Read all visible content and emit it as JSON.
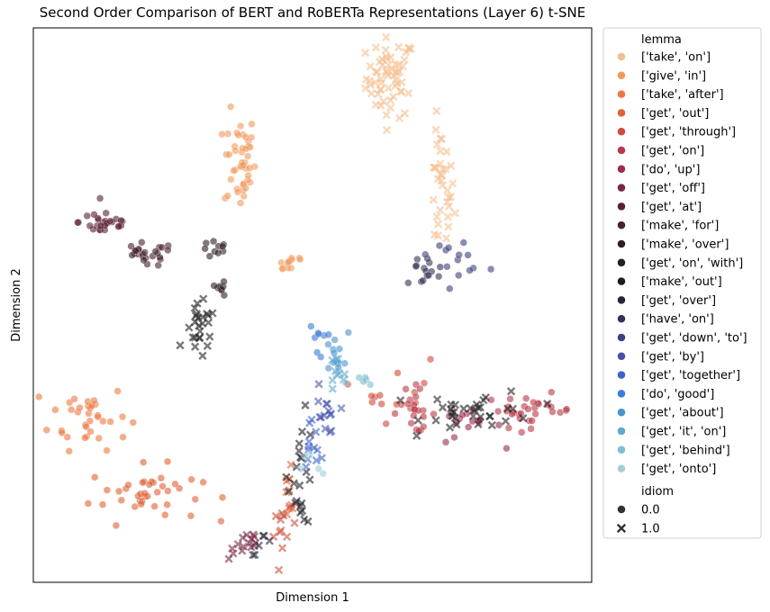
{
  "chart_data": {
    "type": "scatter",
    "title": "Second Order Comparison of BERT and RoBERTa Representations (Layer 6) t-SNE",
    "xlabel": "Dimension 1",
    "ylabel": "Dimension 2",
    "xlim": [
      0,
      100
    ],
    "ylim": [
      0,
      100
    ],
    "x_ticks_visible": false,
    "y_ticks_visible": false,
    "grid": false,
    "legend_placement": "outside-right",
    "hue_legend_title": "lemma",
    "style_legend_title": "idiom",
    "style_legend": [
      {
        "label": "0.0",
        "marker": "circle"
      },
      {
        "label": "1.0",
        "marker": "x"
      }
    ],
    "series": [
      {
        "name": "['take', 'on']",
        "color": "#f5be8e",
        "clusters": [
          {
            "idiom": 1,
            "cx": 64,
            "cy": 91,
            "sx": 2.2,
            "sy": 3.6,
            "n": 60
          },
          {
            "idiom": 1,
            "cx": 73,
            "cy": 70,
            "sx": 1.2,
            "sy": 6,
            "n": 35
          }
        ]
      },
      {
        "name": "['give', 'in']",
        "color": "#f29a5e",
        "clusters": [
          {
            "idiom": 0,
            "cx": 37,
            "cy": 76,
            "sx": 1.4,
            "sy": 4.5,
            "n": 45
          },
          {
            "idiom": 0,
            "cx": 46,
            "cy": 58,
            "sx": 1.5,
            "sy": 1.2,
            "n": 12
          }
        ]
      },
      {
        "name": "['take', 'after']",
        "color": "#ee7a43",
        "clusters": [
          {
            "idiom": 0,
            "cx": 10,
            "cy": 30,
            "sx": 3.5,
            "sy": 3,
            "n": 35
          }
        ]
      },
      {
        "name": "['get', 'out']",
        "color": "#e06236",
        "clusters": [
          {
            "idiom": 0,
            "cx": 20,
            "cy": 16,
            "sx": 5,
            "sy": 2.5,
            "n": 40
          },
          {
            "idiom": 1,
            "cx": 46,
            "cy": 16,
            "sx": 0.8,
            "sy": 3,
            "n": 10
          }
        ]
      },
      {
        "name": "['get', 'through']",
        "color": "#cf4b3a",
        "clusters": [
          {
            "idiom": 0,
            "cx": 65,
            "cy": 35,
            "sx": 3,
            "sy": 3,
            "n": 15
          },
          {
            "idiom": 1,
            "cx": 45,
            "cy": 9,
            "sx": 1,
            "sy": 2,
            "n": 12
          }
        ]
      },
      {
        "name": "['get', 'on']",
        "color": "#b83a48",
        "clusters": [
          {
            "idiom": 0,
            "cx": 89,
            "cy": 31,
            "sx": 4,
            "sy": 1.5,
            "n": 30
          },
          {
            "idiom": 0,
            "cx": 68,
            "cy": 31,
            "sx": 2,
            "sy": 2,
            "n": 20
          }
        ]
      },
      {
        "name": "['do', 'up']",
        "color": "#9c2c4e",
        "clusters": [
          {
            "idiom": 0,
            "cx": 78,
            "cy": 28,
            "sx": 3,
            "sy": 1.5,
            "n": 15
          }
        ]
      },
      {
        "name": "['get', 'off']",
        "color": "#782646",
        "clusters": [
          {
            "idiom": 1,
            "cx": 38,
            "cy": 7,
            "sx": 1.5,
            "sy": 1.5,
            "n": 15
          }
        ]
      },
      {
        "name": "['get', 'at']",
        "color": "#5a1f35",
        "clusters": [
          {
            "idiom": 0,
            "cx": 13,
            "cy": 65,
            "sx": 2.4,
            "sy": 1.3,
            "n": 28
          }
        ]
      },
      {
        "name": "['make', 'for']",
        "color": "#45212e",
        "clusters": [
          {
            "idiom": 0,
            "cx": 20,
            "cy": 59,
            "sx": 2.6,
            "sy": 1.1,
            "n": 25
          }
        ]
      },
      {
        "name": "['make', 'over']",
        "color": "#2e1f24",
        "clusters": [
          {
            "idiom": 0,
            "cx": 33,
            "cy": 60,
            "sx": 1.5,
            "sy": 0.8,
            "n": 10
          },
          {
            "idiom": 0,
            "cx": 33,
            "cy": 53,
            "sx": 0.8,
            "sy": 0.8,
            "n": 8
          }
        ]
      },
      {
        "name": "['get', 'on', 'with']",
        "color": "#222022",
        "clusters": [
          {
            "idiom": 1,
            "cx": 30,
            "cy": 45,
            "sx": 1.4,
            "sy": 2.5,
            "n": 25
          },
          {
            "idiom": 1,
            "cx": 80,
            "cy": 31,
            "sx": 5,
            "sy": 1.8,
            "n": 35
          }
        ]
      },
      {
        "name": "['make', 'out']",
        "color": "#1d1c24",
        "clusters": [
          {
            "idiom": 1,
            "cx": 48,
            "cy": 20,
            "sx": 1.2,
            "sy": 5,
            "n": 22
          }
        ]
      },
      {
        "name": "['get', 'over']",
        "color": "#27263d",
        "clusters": [
          {
            "idiom": 1,
            "cx": 41,
            "cy": 7,
            "sx": 1,
            "sy": 1,
            "n": 6
          }
        ]
      },
      {
        "name": "['have', 'on']",
        "color": "#333357",
        "clusters": [
          {
            "idiom": 0,
            "cx": 70,
            "cy": 56,
            "sx": 2,
            "sy": 1.5,
            "n": 15
          }
        ]
      },
      {
        "name": "['get', 'down', 'to']",
        "color": "#3d4080",
        "clusters": [
          {
            "idiom": 0,
            "cx": 76,
            "cy": 59,
            "sx": 2.5,
            "sy": 1.5,
            "n": 14
          }
        ]
      },
      {
        "name": "['get', 'by']",
        "color": "#4551ab",
        "clusters": [
          {
            "idiom": 1,
            "cx": 52,
            "cy": 29,
            "sx": 1,
            "sy": 3,
            "n": 14
          }
        ]
      },
      {
        "name": "['get', 'together']",
        "color": "#3c63c8",
        "clusters": [
          {
            "idiom": 1,
            "cx": 50,
            "cy": 25,
            "sx": 1,
            "sy": 2.5,
            "n": 12
          }
        ]
      },
      {
        "name": "['do', 'good']",
        "color": "#3a7dd1",
        "clusters": [
          {
            "idiom": 0,
            "cx": 51,
            "cy": 44,
            "sx": 0.8,
            "sy": 1.5,
            "n": 8
          }
        ]
      },
      {
        "name": "['get', 'about']",
        "color": "#4b93d1",
        "clusters": [
          {
            "idiom": 0,
            "cx": 54,
            "cy": 41,
            "sx": 1.2,
            "sy": 2,
            "n": 12
          }
        ]
      },
      {
        "name": "['get', 'it', 'on']",
        "color": "#5ea9cf",
        "clusters": [
          {
            "idiom": 1,
            "cx": 54,
            "cy": 37,
            "sx": 1.2,
            "sy": 2,
            "n": 10
          }
        ]
      },
      {
        "name": "['get', 'behind']",
        "color": "#7fbfd2",
        "clusters": [
          {
            "idiom": 0,
            "cx": 59,
            "cy": 36,
            "sx": 1.5,
            "sy": 1,
            "n": 6
          }
        ]
      },
      {
        "name": "['get', 'onto']",
        "color": "#a3d0d6",
        "clusters": [
          {
            "idiom": 0,
            "cx": 50,
            "cy": 21,
            "sx": 1,
            "sy": 1.5,
            "n": 5
          }
        ]
      }
    ]
  }
}
